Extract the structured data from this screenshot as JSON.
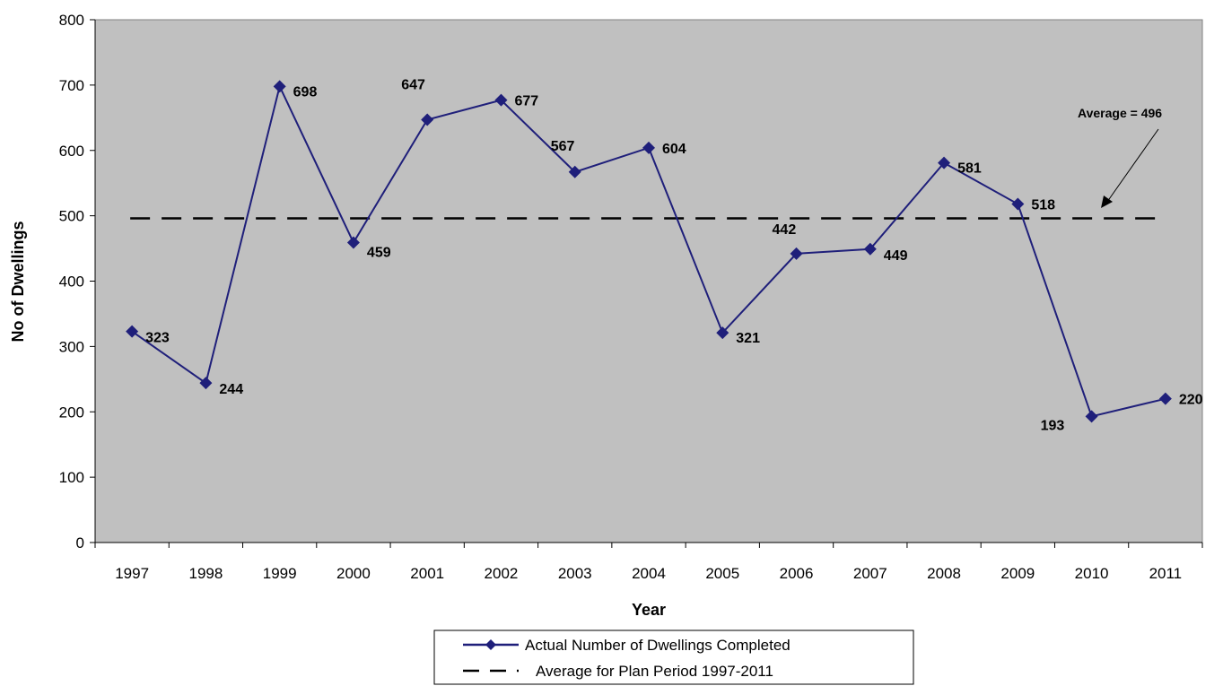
{
  "chart_data": {
    "type": "line",
    "categories": [
      "1997",
      "1998",
      "1999",
      "2000",
      "2001",
      "2002",
      "2003",
      "2004",
      "2005",
      "2006",
      "2007",
      "2008",
      "2009",
      "2010",
      "2011"
    ],
    "series": [
      {
        "name": "Actual Number of Dwellings Completed",
        "values": [
          323,
          244,
          698,
          459,
          647,
          677,
          567,
          604,
          321,
          442,
          449,
          581,
          518,
          193,
          220
        ],
        "color": "#1F1F7A",
        "marker": "diamond"
      },
      {
        "name": "Average for Plan Period 1997-2011",
        "value": 496,
        "style": "dashed",
        "color": "#000000"
      }
    ],
    "xlabel": "Year",
    "ylabel": "No of Dwellings",
    "ylim": [
      0,
      800
    ],
    "yticks": [
      "0",
      "100",
      "200",
      "300",
      "400",
      "500",
      "600",
      "700",
      "800"
    ],
    "plot_background": "#C0C0C0",
    "grid": false,
    "legend_position": "bottom-center",
    "annotation": "Average = 496"
  }
}
